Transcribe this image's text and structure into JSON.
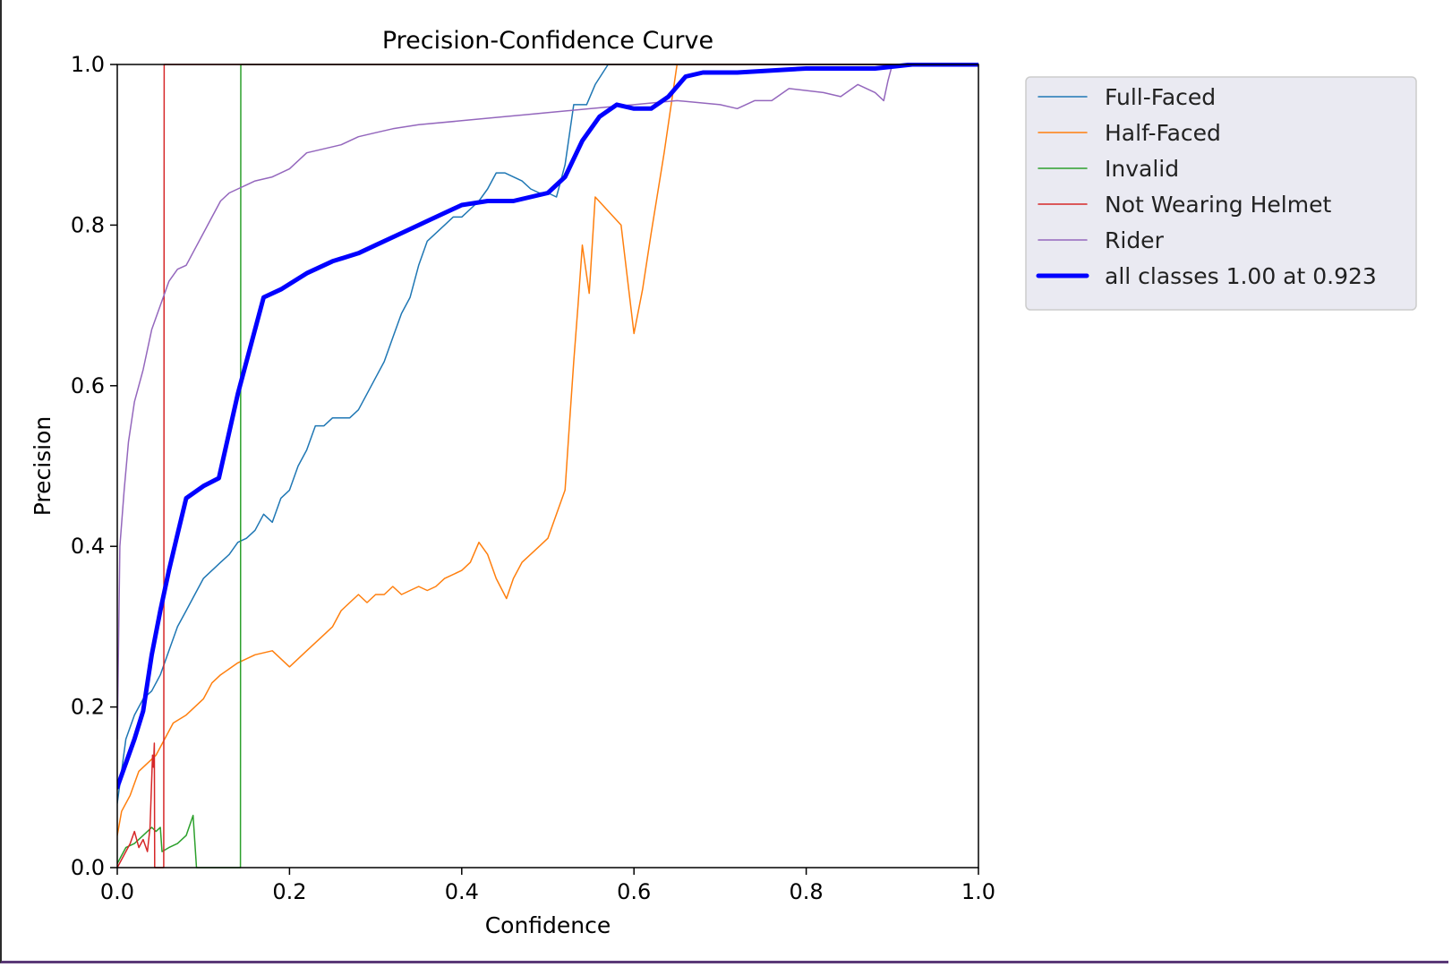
{
  "chart_data": {
    "type": "line",
    "title": "Precision-Confidence Curve",
    "xlabel": "Confidence",
    "ylabel": "Precision",
    "xlim": [
      0.0,
      1.0
    ],
    "ylim": [
      0.0,
      1.0
    ],
    "x_ticks": [
      "0.0",
      "0.2",
      "0.4",
      "0.6",
      "0.8",
      "1.0"
    ],
    "y_ticks": [
      "0.0",
      "0.2",
      "0.4",
      "0.6",
      "0.8",
      "1.0"
    ],
    "grid": false,
    "legend_position": "outside-upper-right",
    "series": [
      {
        "name": "Full-Faced",
        "color": "#1f77b4",
        "width": 1.5,
        "points": [
          [
            0.0,
            0.08
          ],
          [
            0.01,
            0.16
          ],
          [
            0.02,
            0.19
          ],
          [
            0.03,
            0.21
          ],
          [
            0.04,
            0.22
          ],
          [
            0.05,
            0.24
          ],
          [
            0.06,
            0.27
          ],
          [
            0.07,
            0.3
          ],
          [
            0.08,
            0.32
          ],
          [
            0.09,
            0.34
          ],
          [
            0.1,
            0.36
          ],
          [
            0.11,
            0.37
          ],
          [
            0.12,
            0.38
          ],
          [
            0.13,
            0.39
          ],
          [
            0.14,
            0.405
          ],
          [
            0.15,
            0.41
          ],
          [
            0.16,
            0.42
          ],
          [
            0.17,
            0.44
          ],
          [
            0.18,
            0.43
          ],
          [
            0.19,
            0.46
          ],
          [
            0.2,
            0.47
          ],
          [
            0.21,
            0.5
          ],
          [
            0.22,
            0.52
          ],
          [
            0.23,
            0.55
          ],
          [
            0.24,
            0.55
          ],
          [
            0.25,
            0.56
          ],
          [
            0.26,
            0.56
          ],
          [
            0.27,
            0.56
          ],
          [
            0.28,
            0.57
          ],
          [
            0.29,
            0.59
          ],
          [
            0.3,
            0.61
          ],
          [
            0.31,
            0.63
          ],
          [
            0.32,
            0.66
          ],
          [
            0.33,
            0.69
          ],
          [
            0.34,
            0.71
          ],
          [
            0.35,
            0.75
          ],
          [
            0.36,
            0.78
          ],
          [
            0.37,
            0.79
          ],
          [
            0.38,
            0.8
          ],
          [
            0.39,
            0.81
          ],
          [
            0.4,
            0.81
          ],
          [
            0.41,
            0.82
          ],
          [
            0.42,
            0.83
          ],
          [
            0.43,
            0.845
          ],
          [
            0.44,
            0.865
          ],
          [
            0.45,
            0.865
          ],
          [
            0.46,
            0.86
          ],
          [
            0.47,
            0.855
          ],
          [
            0.48,
            0.845
          ],
          [
            0.49,
            0.84
          ],
          [
            0.5,
            0.84
          ],
          [
            0.51,
            0.835
          ],
          [
            0.52,
            0.875
          ],
          [
            0.53,
            0.95
          ],
          [
            0.545,
            0.95
          ],
          [
            0.555,
            0.975
          ],
          [
            0.57,
            1.0
          ],
          [
            1.0,
            1.0
          ]
        ]
      },
      {
        "name": "Half-Faced",
        "color": "#ff7f0e",
        "width": 1.5,
        "points": [
          [
            0.0,
            0.04
          ],
          [
            0.005,
            0.07
          ],
          [
            0.015,
            0.09
          ],
          [
            0.025,
            0.12
          ],
          [
            0.035,
            0.13
          ],
          [
            0.045,
            0.14
          ],
          [
            0.055,
            0.16
          ],
          [
            0.065,
            0.18
          ],
          [
            0.08,
            0.19
          ],
          [
            0.1,
            0.21
          ],
          [
            0.11,
            0.23
          ],
          [
            0.12,
            0.24
          ],
          [
            0.14,
            0.255
          ],
          [
            0.16,
            0.265
          ],
          [
            0.18,
            0.27
          ],
          [
            0.19,
            0.26
          ],
          [
            0.2,
            0.25
          ],
          [
            0.22,
            0.27
          ],
          [
            0.24,
            0.29
          ],
          [
            0.25,
            0.3
          ],
          [
            0.26,
            0.32
          ],
          [
            0.27,
            0.33
          ],
          [
            0.28,
            0.34
          ],
          [
            0.29,
            0.33
          ],
          [
            0.3,
            0.34
          ],
          [
            0.31,
            0.34
          ],
          [
            0.32,
            0.35
          ],
          [
            0.33,
            0.34
          ],
          [
            0.34,
            0.345
          ],
          [
            0.35,
            0.35
          ],
          [
            0.36,
            0.345
          ],
          [
            0.37,
            0.35
          ],
          [
            0.38,
            0.36
          ],
          [
            0.4,
            0.37
          ],
          [
            0.41,
            0.38
          ],
          [
            0.42,
            0.405
          ],
          [
            0.43,
            0.39
          ],
          [
            0.44,
            0.36
          ],
          [
            0.452,
            0.335
          ],
          [
            0.46,
            0.36
          ],
          [
            0.47,
            0.38
          ],
          [
            0.49,
            0.4
          ],
          [
            0.5,
            0.41
          ],
          [
            0.51,
            0.44
          ],
          [
            0.52,
            0.47
          ],
          [
            0.525,
            0.55
          ],
          [
            0.53,
            0.63
          ],
          [
            0.535,
            0.7
          ],
          [
            0.54,
            0.775
          ],
          [
            0.548,
            0.715
          ],
          [
            0.555,
            0.835
          ],
          [
            0.585,
            0.8
          ],
          [
            0.6,
            0.665
          ],
          [
            0.61,
            0.72
          ],
          [
            0.62,
            0.79
          ],
          [
            0.635,
            0.89
          ],
          [
            0.65,
            1.0
          ],
          [
            1.0,
            1.0
          ]
        ]
      },
      {
        "name": "Invalid",
        "color": "#2ca02c",
        "width": 1.5,
        "points": [
          [
            0.0,
            0.005
          ],
          [
            0.005,
            0.015
          ],
          [
            0.01,
            0.025
          ],
          [
            0.02,
            0.03
          ],
          [
            0.03,
            0.04
          ],
          [
            0.04,
            0.05
          ],
          [
            0.045,
            0.045
          ],
          [
            0.05,
            0.05
          ],
          [
            0.052,
            0.02
          ],
          [
            0.06,
            0.025
          ],
          [
            0.07,
            0.03
          ],
          [
            0.08,
            0.04
          ],
          [
            0.088,
            0.065
          ],
          [
            0.092,
            0.0
          ],
          [
            0.143,
            0.0
          ],
          [
            0.1435,
            1.0
          ],
          [
            1.0,
            1.0
          ]
        ]
      },
      {
        "name": "Not Wearing Helmet",
        "color": "#d62728",
        "width": 1.5,
        "points": [
          [
            0.0,
            0.0
          ],
          [
            0.01,
            0.02
          ],
          [
            0.015,
            0.03
          ],
          [
            0.02,
            0.045
          ],
          [
            0.025,
            0.025
          ],
          [
            0.03,
            0.035
          ],
          [
            0.035,
            0.02
          ],
          [
            0.038,
            0.05
          ],
          [
            0.041,
            0.14
          ],
          [
            0.042,
            0.125
          ],
          [
            0.043,
            0.155
          ],
          [
            0.0435,
            0.0
          ],
          [
            0.054,
            0.0
          ],
          [
            0.0545,
            1.0
          ],
          [
            1.0,
            1.0
          ]
        ]
      },
      {
        "name": "Rider",
        "color": "#9467bd",
        "width": 1.5,
        "points": [
          [
            0.0,
            0.16
          ],
          [
            0.003,
            0.4
          ],
          [
            0.008,
            0.47
          ],
          [
            0.013,
            0.53
          ],
          [
            0.02,
            0.58
          ],
          [
            0.03,
            0.62
          ],
          [
            0.04,
            0.67
          ],
          [
            0.05,
            0.7
          ],
          [
            0.06,
            0.73
          ],
          [
            0.07,
            0.745
          ],
          [
            0.08,
            0.75
          ],
          [
            0.09,
            0.77
          ],
          [
            0.1,
            0.79
          ],
          [
            0.11,
            0.81
          ],
          [
            0.12,
            0.83
          ],
          [
            0.13,
            0.84
          ],
          [
            0.14,
            0.845
          ],
          [
            0.15,
            0.85
          ],
          [
            0.16,
            0.855
          ],
          [
            0.18,
            0.86
          ],
          [
            0.2,
            0.87
          ],
          [
            0.22,
            0.89
          ],
          [
            0.24,
            0.895
          ],
          [
            0.26,
            0.9
          ],
          [
            0.28,
            0.91
          ],
          [
            0.3,
            0.915
          ],
          [
            0.32,
            0.92
          ],
          [
            0.35,
            0.925
          ],
          [
            0.4,
            0.93
          ],
          [
            0.45,
            0.935
          ],
          [
            0.5,
            0.94
          ],
          [
            0.55,
            0.945
          ],
          [
            0.6,
            0.95
          ],
          [
            0.65,
            0.955
          ],
          [
            0.7,
            0.95
          ],
          [
            0.72,
            0.945
          ],
          [
            0.74,
            0.955
          ],
          [
            0.76,
            0.955
          ],
          [
            0.78,
            0.97
          ],
          [
            0.82,
            0.965
          ],
          [
            0.84,
            0.96
          ],
          [
            0.86,
            0.975
          ],
          [
            0.88,
            0.965
          ],
          [
            0.89,
            0.955
          ],
          [
            0.895,
            0.98
          ],
          [
            0.9,
            1.0
          ],
          [
            1.0,
            1.0
          ]
        ]
      },
      {
        "name": "all classes 1.00 at 0.923",
        "color": "#0000ff",
        "width": 5,
        "points": [
          [
            0.0,
            0.1
          ],
          [
            0.01,
            0.13
          ],
          [
            0.02,
            0.16
          ],
          [
            0.03,
            0.195
          ],
          [
            0.04,
            0.265
          ],
          [
            0.05,
            0.32
          ],
          [
            0.06,
            0.37
          ],
          [
            0.07,
            0.415
          ],
          [
            0.08,
            0.46
          ],
          [
            0.1,
            0.475
          ],
          [
            0.118,
            0.485
          ],
          [
            0.14,
            0.59
          ],
          [
            0.16,
            0.67
          ],
          [
            0.17,
            0.71
          ],
          [
            0.19,
            0.72
          ],
          [
            0.22,
            0.74
          ],
          [
            0.25,
            0.755
          ],
          [
            0.28,
            0.765
          ],
          [
            0.3,
            0.775
          ],
          [
            0.33,
            0.79
          ],
          [
            0.36,
            0.805
          ],
          [
            0.38,
            0.815
          ],
          [
            0.4,
            0.825
          ],
          [
            0.43,
            0.83
          ],
          [
            0.46,
            0.83
          ],
          [
            0.48,
            0.835
          ],
          [
            0.5,
            0.84
          ],
          [
            0.52,
            0.86
          ],
          [
            0.54,
            0.905
          ],
          [
            0.56,
            0.935
          ],
          [
            0.58,
            0.95
          ],
          [
            0.6,
            0.945
          ],
          [
            0.62,
            0.945
          ],
          [
            0.64,
            0.96
          ],
          [
            0.66,
            0.985
          ],
          [
            0.68,
            0.99
          ],
          [
            0.72,
            0.99
          ],
          [
            0.8,
            0.995
          ],
          [
            0.88,
            0.995
          ],
          [
            0.923,
            1.0
          ],
          [
            1.0,
            1.0
          ]
        ]
      }
    ]
  }
}
